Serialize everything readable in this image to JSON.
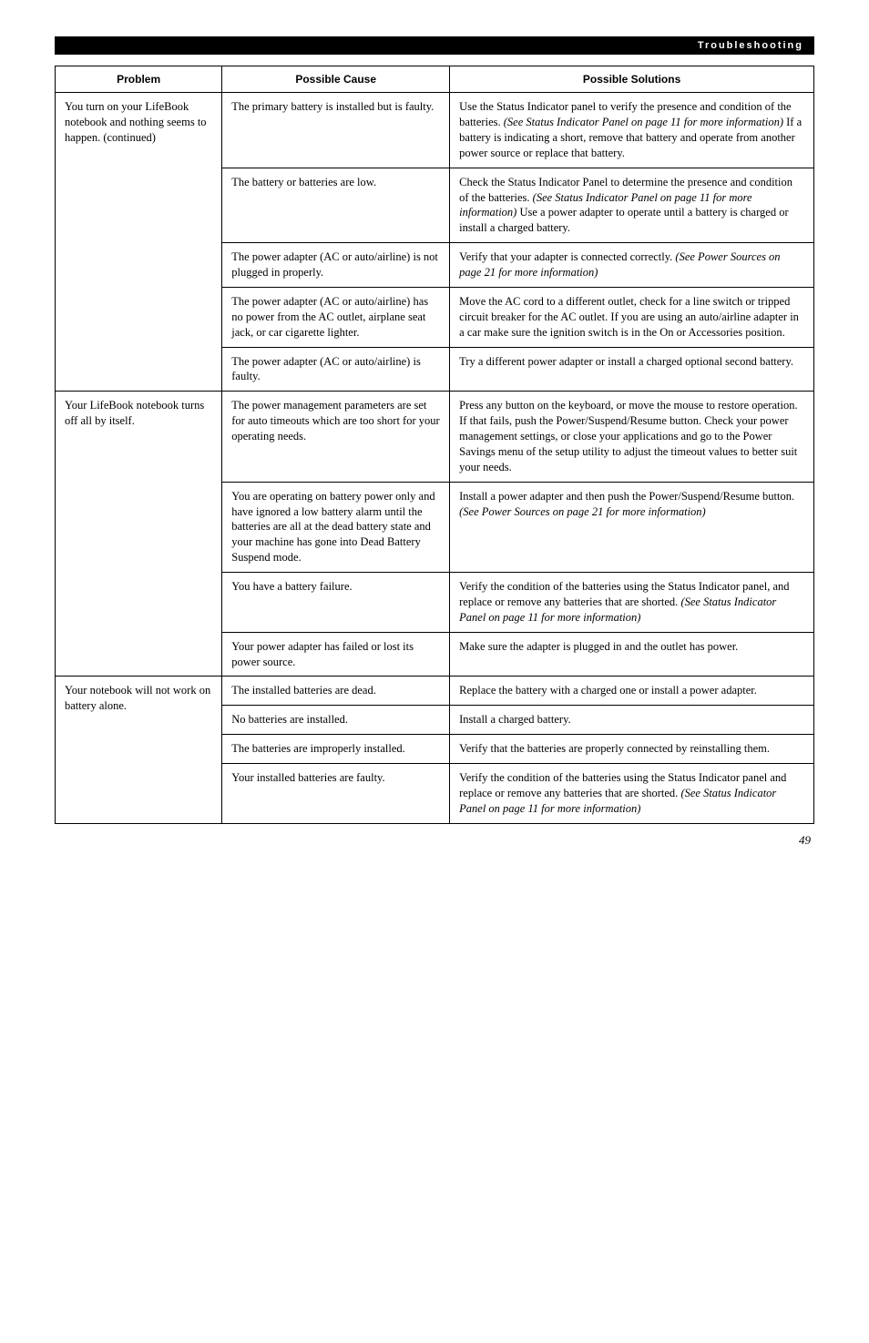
{
  "header": "Troubleshooting",
  "columns": [
    "Problem",
    "Possible Cause",
    "Possible Solutions"
  ],
  "page_number": "49",
  "groups": [
    {
      "problem": "You turn on your LifeBook notebook and nothing seems to happen. (continued)",
      "rows": [
        {
          "cause": "The primary battery is installed but is faulty.",
          "solution_parts": [
            {
              "t": "Use the Status Indicator panel to verify the presence and condition of the batteries. "
            },
            {
              "t": "(See Status Indicator Panel on page 11 for more information)",
              "i": true
            },
            {
              "t": " If a battery is indicating a short, remove that battery and operate from another power source or replace that battery."
            }
          ]
        },
        {
          "cause": "The battery or batteries are low.",
          "solution_parts": [
            {
              "t": "Check the Status Indicator Panel to determine the presence and condition of the batteries. "
            },
            {
              "t": "(See Status Indicator Panel on page 11 for more information)",
              "i": true
            },
            {
              "t": " Use a power adapter to operate until a battery is charged or install a charged battery."
            }
          ]
        },
        {
          "cause": "The power adapter (AC or auto/airline) is not plugged in properly.",
          "solution_parts": [
            {
              "t": "Verify that your adapter is connected correctly. "
            },
            {
              "t": "(See Power Sources on page 21 for more information)",
              "i": true
            }
          ]
        },
        {
          "cause": "The power adapter (AC or auto/airline) has no power from the AC outlet, airplane seat jack, or car cigarette lighter.",
          "solution_parts": [
            {
              "t": "Move the AC cord to a different outlet, check for a line switch or tripped circuit breaker for the AC outlet. If you are using an auto/airline adapter in a car make sure the ignition switch is in the On or Accessories position."
            }
          ]
        },
        {
          "cause": "The power adapter (AC or auto/airline) is faulty.",
          "solution_parts": [
            {
              "t": "Try a different power adapter or install a charged optional second battery."
            }
          ]
        }
      ]
    },
    {
      "problem": "Your LifeBook notebook turns off all by itself.",
      "rows": [
        {
          "cause": "The power management parameters are set for auto timeouts which are too short for your operating needs.",
          "solution_parts": [
            {
              "t": "Press any button on the keyboard, or move the mouse to restore operation. If that fails, push the Power/Suspend/Resume button. Check your power management settings, or close your applications and go to the Power Savings menu of the setup utility to adjust the timeout values to better suit your needs."
            }
          ]
        },
        {
          "cause": "You are operating on battery power only and have ignored a low battery alarm until the batteries are all at the dead battery state and your machine has gone into Dead Battery Suspend mode.",
          "solution_parts": [
            {
              "t": "Install a power adapter and then push the Power/Suspend/Resume button. "
            },
            {
              "t": "(See Power Sources on page 21 for more information)",
              "i": true
            }
          ]
        },
        {
          "cause": "You have a battery failure.",
          "solution_parts": [
            {
              "t": "Verify the condition of the batteries using the Status Indicator panel, and replace or remove any batteries that are shorted. "
            },
            {
              "t": "(See Status Indicator Panel on page 11 for more information)",
              "i": true
            }
          ]
        },
        {
          "cause": "Your power adapter has failed or lost its power source.",
          "solution_parts": [
            {
              "t": "Make sure the adapter is plugged in and the outlet has power."
            }
          ]
        }
      ]
    },
    {
      "problem": "Your notebook will not work on battery alone.",
      "rows": [
        {
          "cause": "The installed batteries are dead.",
          "solution_parts": [
            {
              "t": "Replace the battery with a charged one or install a power adapter."
            }
          ]
        },
        {
          "cause": "No batteries are installed.",
          "solution_parts": [
            {
              "t": "Install a charged battery."
            }
          ]
        },
        {
          "cause": "The batteries are improperly installed.",
          "solution_parts": [
            {
              "t": "Verify that the batteries are properly connected by reinstalling them."
            }
          ]
        },
        {
          "cause": "Your installed batteries are faulty.",
          "solution_parts": [
            {
              "t": "Verify the condition of the batteries using the Status Indicator panel and replace or remove any batteries that are shorted. "
            },
            {
              "t": "(See Status Indicator Panel on page 11 for more information)",
              "i": true
            }
          ]
        }
      ]
    }
  ]
}
